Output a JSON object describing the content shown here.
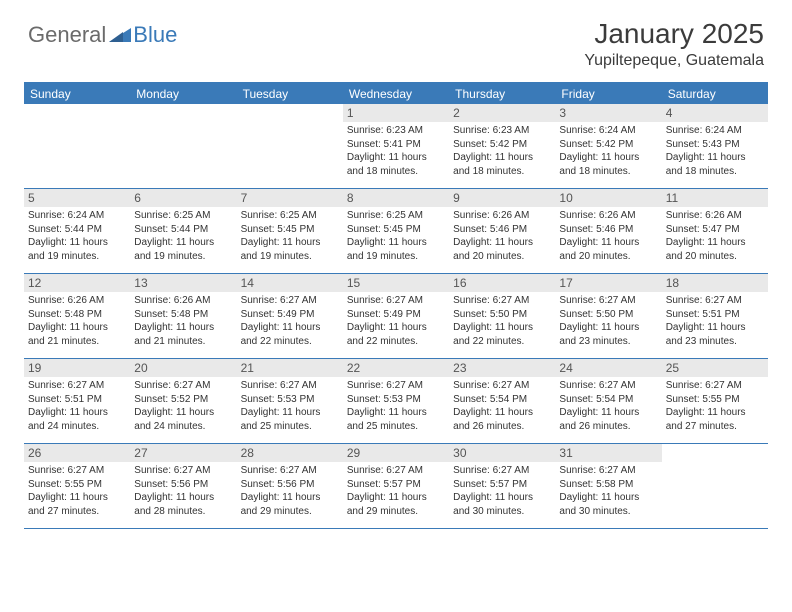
{
  "brand": {
    "part1": "General",
    "part2": "Blue"
  },
  "header": {
    "month_title": "January 2025",
    "location": "Yupiltepeque, Guatemala"
  },
  "colors": {
    "primary": "#3a7ab8",
    "dayshade": "#e9e9e9",
    "text": "#333333",
    "logo_gray": "#6b6b6b"
  },
  "weekdays": [
    "Sunday",
    "Monday",
    "Tuesday",
    "Wednesday",
    "Thursday",
    "Friday",
    "Saturday"
  ],
  "weeks": [
    [
      null,
      null,
      null,
      {
        "n": "1",
        "sr": "6:23 AM",
        "ss": "5:41 PM",
        "dh": "11",
        "dm": "18"
      },
      {
        "n": "2",
        "sr": "6:23 AM",
        "ss": "5:42 PM",
        "dh": "11",
        "dm": "18"
      },
      {
        "n": "3",
        "sr": "6:24 AM",
        "ss": "5:42 PM",
        "dh": "11",
        "dm": "18"
      },
      {
        "n": "4",
        "sr": "6:24 AM",
        "ss": "5:43 PM",
        "dh": "11",
        "dm": "18"
      }
    ],
    [
      {
        "n": "5",
        "sr": "6:24 AM",
        "ss": "5:44 PM",
        "dh": "11",
        "dm": "19"
      },
      {
        "n": "6",
        "sr": "6:25 AM",
        "ss": "5:44 PM",
        "dh": "11",
        "dm": "19"
      },
      {
        "n": "7",
        "sr": "6:25 AM",
        "ss": "5:45 PM",
        "dh": "11",
        "dm": "19"
      },
      {
        "n": "8",
        "sr": "6:25 AM",
        "ss": "5:45 PM",
        "dh": "11",
        "dm": "19"
      },
      {
        "n": "9",
        "sr": "6:26 AM",
        "ss": "5:46 PM",
        "dh": "11",
        "dm": "20"
      },
      {
        "n": "10",
        "sr": "6:26 AM",
        "ss": "5:46 PM",
        "dh": "11",
        "dm": "20"
      },
      {
        "n": "11",
        "sr": "6:26 AM",
        "ss": "5:47 PM",
        "dh": "11",
        "dm": "20"
      }
    ],
    [
      {
        "n": "12",
        "sr": "6:26 AM",
        "ss": "5:48 PM",
        "dh": "11",
        "dm": "21"
      },
      {
        "n": "13",
        "sr": "6:26 AM",
        "ss": "5:48 PM",
        "dh": "11",
        "dm": "21"
      },
      {
        "n": "14",
        "sr": "6:27 AM",
        "ss": "5:49 PM",
        "dh": "11",
        "dm": "22"
      },
      {
        "n": "15",
        "sr": "6:27 AM",
        "ss": "5:49 PM",
        "dh": "11",
        "dm": "22"
      },
      {
        "n": "16",
        "sr": "6:27 AM",
        "ss": "5:50 PM",
        "dh": "11",
        "dm": "22"
      },
      {
        "n": "17",
        "sr": "6:27 AM",
        "ss": "5:50 PM",
        "dh": "11",
        "dm": "23"
      },
      {
        "n": "18",
        "sr": "6:27 AM",
        "ss": "5:51 PM",
        "dh": "11",
        "dm": "23"
      }
    ],
    [
      {
        "n": "19",
        "sr": "6:27 AM",
        "ss": "5:51 PM",
        "dh": "11",
        "dm": "24"
      },
      {
        "n": "20",
        "sr": "6:27 AM",
        "ss": "5:52 PM",
        "dh": "11",
        "dm": "24"
      },
      {
        "n": "21",
        "sr": "6:27 AM",
        "ss": "5:53 PM",
        "dh": "11",
        "dm": "25"
      },
      {
        "n": "22",
        "sr": "6:27 AM",
        "ss": "5:53 PM",
        "dh": "11",
        "dm": "25"
      },
      {
        "n": "23",
        "sr": "6:27 AM",
        "ss": "5:54 PM",
        "dh": "11",
        "dm": "26"
      },
      {
        "n": "24",
        "sr": "6:27 AM",
        "ss": "5:54 PM",
        "dh": "11",
        "dm": "26"
      },
      {
        "n": "25",
        "sr": "6:27 AM",
        "ss": "5:55 PM",
        "dh": "11",
        "dm": "27"
      }
    ],
    [
      {
        "n": "26",
        "sr": "6:27 AM",
        "ss": "5:55 PM",
        "dh": "11",
        "dm": "27"
      },
      {
        "n": "27",
        "sr": "6:27 AM",
        "ss": "5:56 PM",
        "dh": "11",
        "dm": "28"
      },
      {
        "n": "28",
        "sr": "6:27 AM",
        "ss": "5:56 PM",
        "dh": "11",
        "dm": "29"
      },
      {
        "n": "29",
        "sr": "6:27 AM",
        "ss": "5:57 PM",
        "dh": "11",
        "dm": "29"
      },
      {
        "n": "30",
        "sr": "6:27 AM",
        "ss": "5:57 PM",
        "dh": "11",
        "dm": "30"
      },
      {
        "n": "31",
        "sr": "6:27 AM",
        "ss": "5:58 PM",
        "dh": "11",
        "dm": "30"
      },
      null
    ]
  ],
  "labels": {
    "sunrise": "Sunrise:",
    "sunset": "Sunset:",
    "daylight_prefix": "Daylight:",
    "hours_word": "hours",
    "and_word": "and",
    "minutes_word": "minutes."
  }
}
